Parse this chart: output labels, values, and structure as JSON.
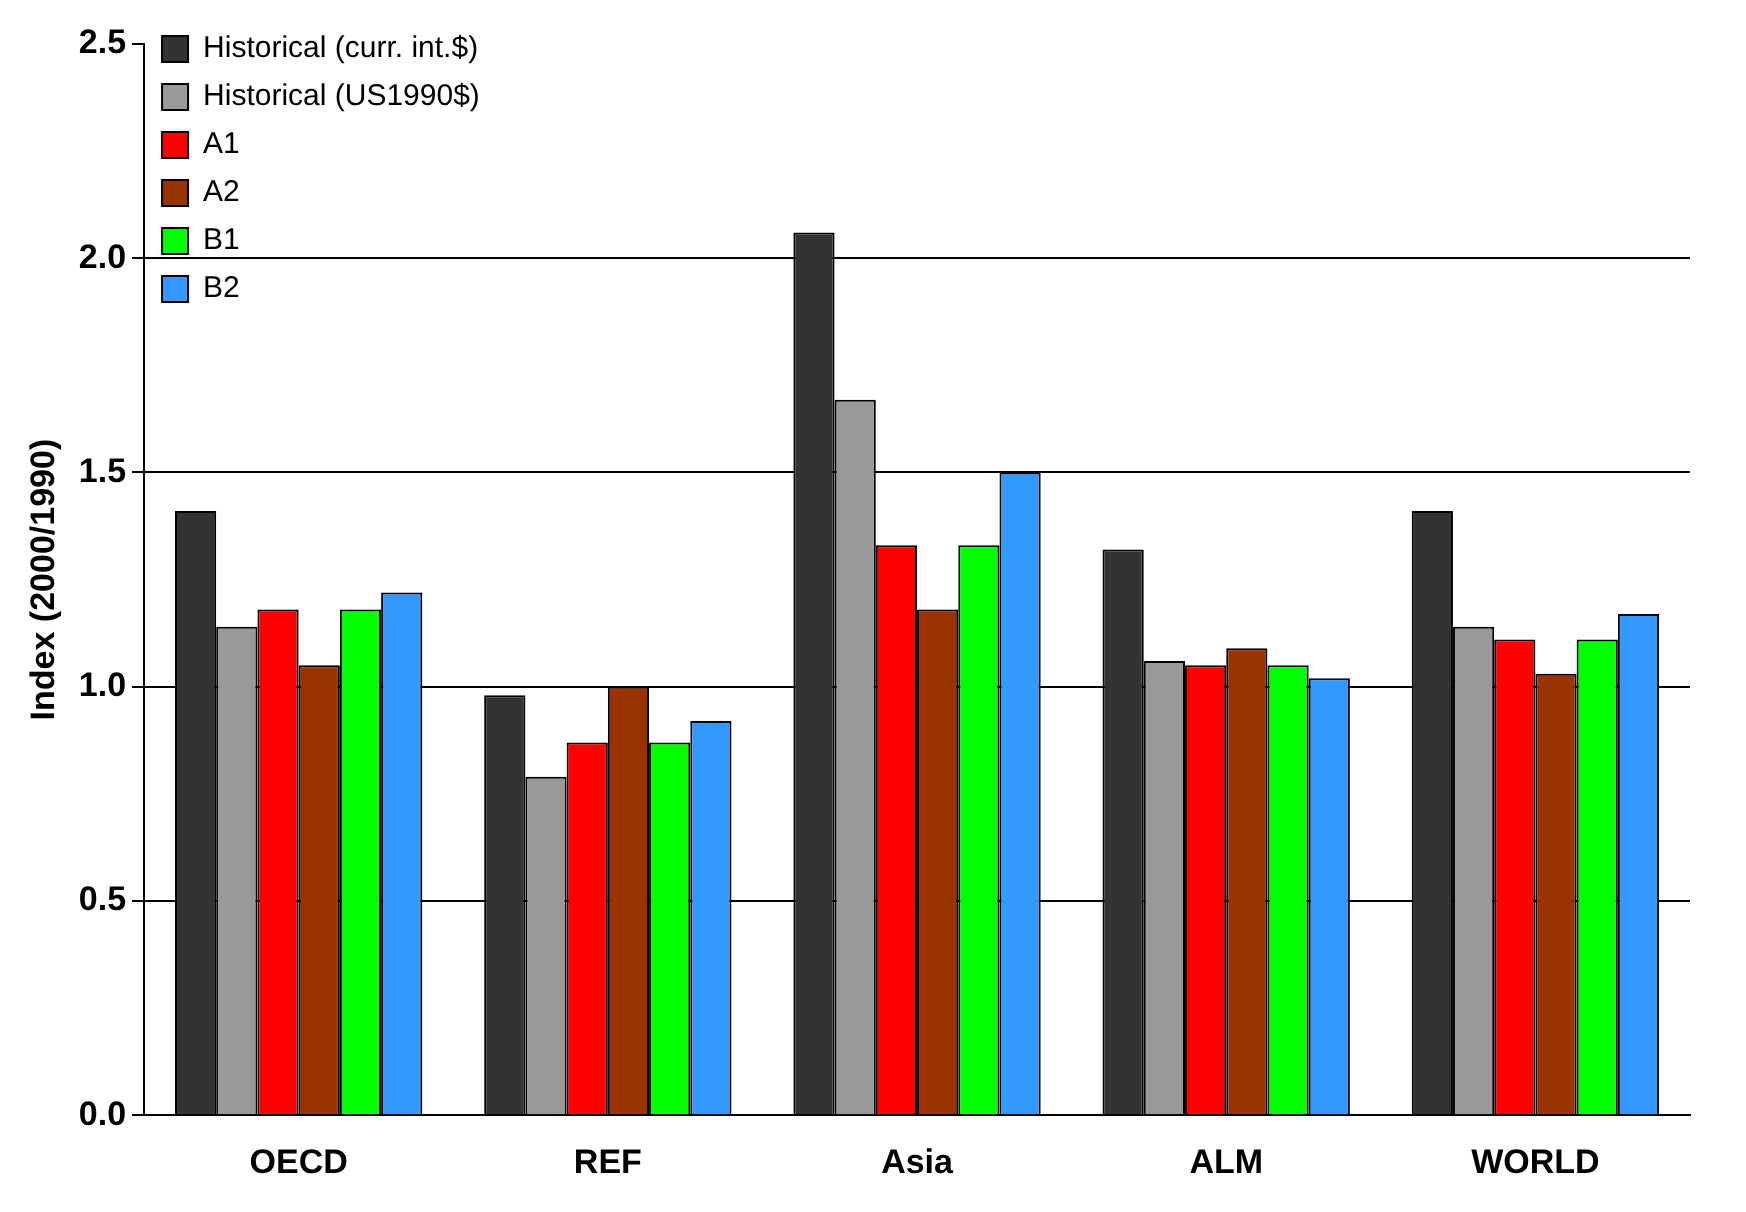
{
  "chart_data": {
    "type": "bar",
    "ylabel": "Index (2000/1990)",
    "categories": [
      "OECD",
      "REF",
      "Asia",
      "ALM",
      "WORLD"
    ],
    "series": [
      {
        "name": "Historical (curr. int.$)",
        "color": "#333333",
        "values": [
          1.41,
          0.98,
          2.06,
          1.32,
          1.41
        ]
      },
      {
        "name": "Historical (US1990$)",
        "color": "#999999",
        "values": [
          1.14,
          0.79,
          1.67,
          1.06,
          1.14
        ]
      },
      {
        "name": "A1",
        "color": "#ff0000",
        "values": [
          1.18,
          0.87,
          1.33,
          1.05,
          1.11
        ]
      },
      {
        "name": "A2",
        "color": "#993300",
        "values": [
          1.05,
          1.0,
          1.18,
          1.09,
          1.03
        ]
      },
      {
        "name": "B1",
        "color": "#00ff00",
        "values": [
          1.18,
          0.87,
          1.33,
          1.05,
          1.11
        ]
      },
      {
        "name": "B2",
        "color": "#3399ff",
        "values": [
          1.22,
          0.92,
          1.5,
          1.02,
          1.17
        ]
      }
    ],
    "ylim": [
      0,
      2.5
    ],
    "yticks": [
      {
        "value": 0,
        "label": "0.0"
      },
      {
        "value": 0.5,
        "label": "0.5"
      },
      {
        "value": 1,
        "label": "1.0"
      },
      {
        "value": 1.5,
        "label": "1.5"
      },
      {
        "value": 2,
        "label": "2.0"
      },
      {
        "value": 2.5,
        "label": "2.5"
      }
    ],
    "grid": "y",
    "legend": "top left"
  }
}
